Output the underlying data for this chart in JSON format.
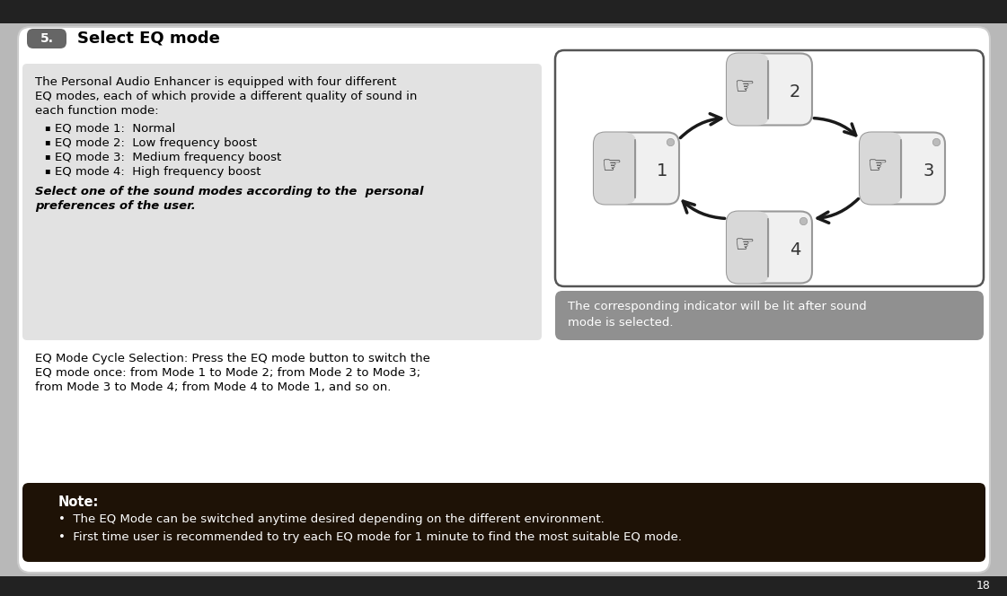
{
  "title_num": "5.",
  "title_text": "Select EQ mode",
  "title_num_bg": "#666666",
  "title_num_color": "#ffffff",
  "title_text_color": "#000000",
  "main_bg": "#ffffff",
  "outer_bg": "#b8b8b8",
  "body_text_bg": "#e2e2e2",
  "note_bg": "#1e1206",
  "note_title_color": "#ffffff",
  "note_body_color": "#ffffff",
  "body_text_line1": "The Personal Audio Enhancer is equipped with four different",
  "body_text_line2": "EQ modes, each of which provide a different quality of sound in",
  "body_text_line3": "each function mode:",
  "eq_modes": [
    "EQ mode 1:  Normal",
    "EQ mode 2:  Low frequency boost",
    "EQ mode 3:  Medium frequency boost",
    "EQ mode 4:  High frequency boost"
  ],
  "italic_line1": "Select one of the sound modes according to the  personal",
  "italic_line2": "preferences of the user.",
  "cycle_line1": "EQ Mode Cycle Selection: Press the EQ mode button to switch the",
  "cycle_line2": "EQ mode once: from Mode 1 to Mode 2; from Mode 2 to Mode 3;",
  "cycle_line3": "from Mode 3 to Mode 4; from Mode 4 to Mode 1, and so on.",
  "indicator_line1": "The corresponding indicator will be lit after sound",
  "indicator_line2": "mode is selected.",
  "note_title": "Note:",
  "note_bullet1": "The EQ Mode can be switched anytime desired depending on the different environment.",
  "note_bullet2": "First time user is recommended to try each EQ mode for 1 minute to find the most suitable EQ mode.",
  "page_num": "18",
  "diagram_bg": "#ffffff",
  "indicator_bg": "#909090",
  "arrow_color": "#1a1a1a",
  "btn_left_color": "#d8d8d8",
  "btn_right_color": "#f0f0f0",
  "btn_border_color": "#999999",
  "divider_color": "#888888"
}
